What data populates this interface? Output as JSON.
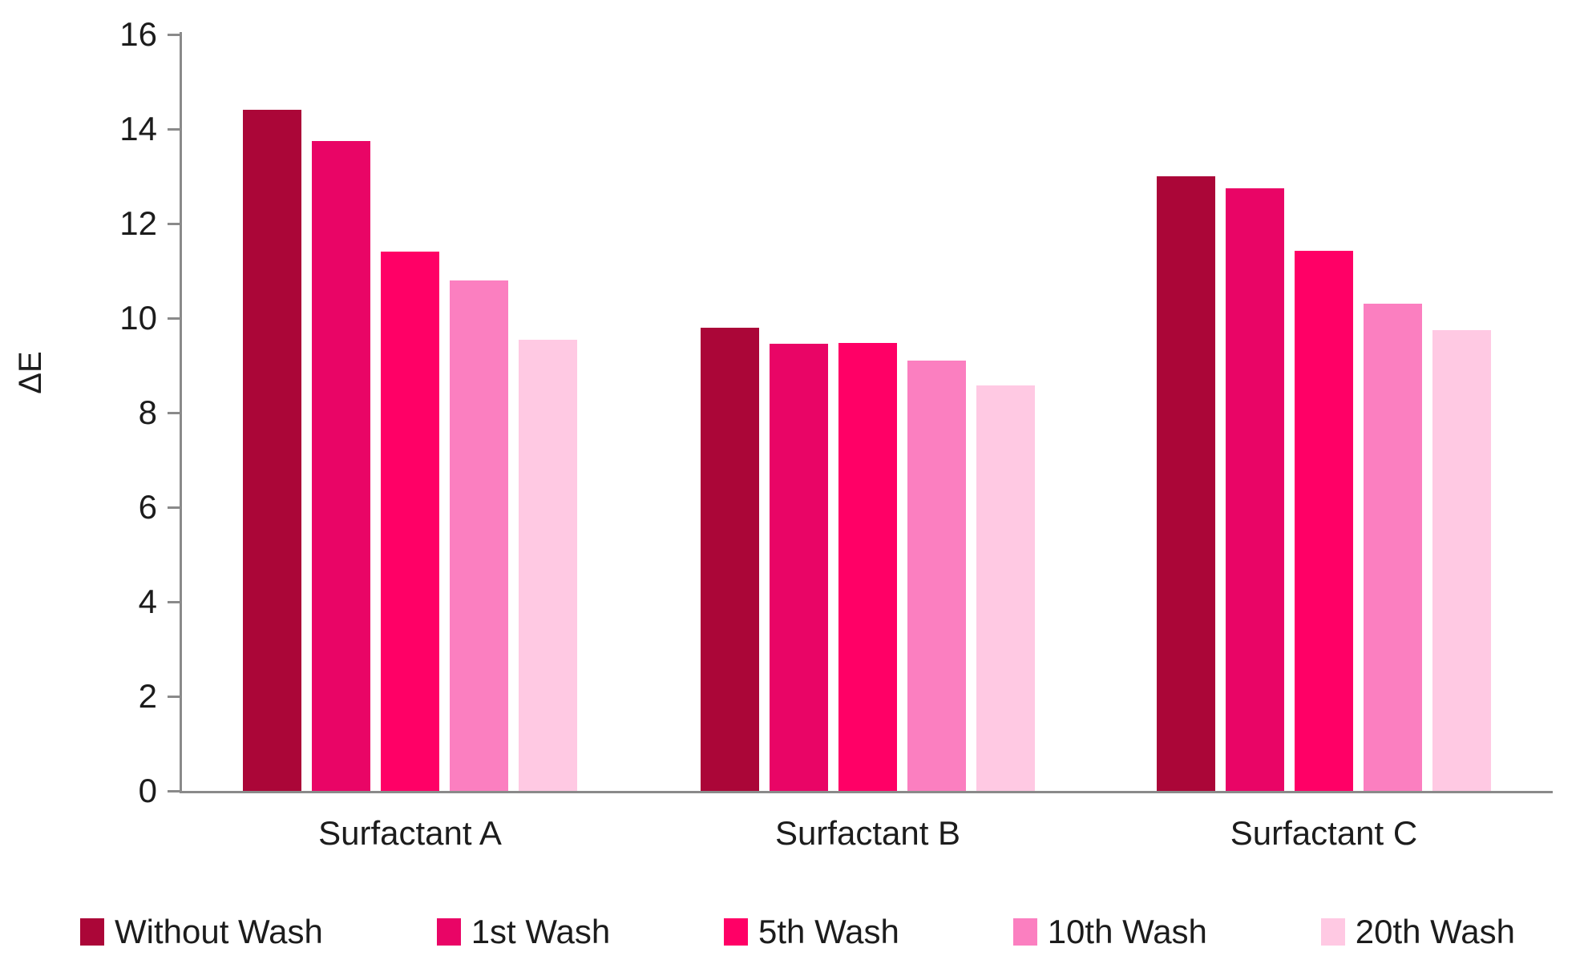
{
  "chart_data": {
    "type": "bar",
    "title": "",
    "xlabel": "",
    "ylabel": "ΔE",
    "ylim": [
      0,
      16
    ],
    "yticks": [
      0,
      2,
      4,
      6,
      8,
      10,
      12,
      14,
      16
    ],
    "grid": false,
    "legend_position": "bottom",
    "axis_color": "#8a8a8a",
    "categories": [
      "Surfactant A",
      "Surfactant B",
      "Surfactant C"
    ],
    "series": [
      {
        "name": "Without Wash",
        "color": "#ab0638",
        "values": [
          14.4,
          9.8,
          13.0
        ]
      },
      {
        "name": "1st Wash",
        "color": "#e90566",
        "values": [
          13.75,
          9.45,
          12.75
        ]
      },
      {
        "name": "5th Wash",
        "color": "#ff0066",
        "values": [
          11.4,
          9.47,
          11.43
        ]
      },
      {
        "name": "10th Wash",
        "color": "#fb7fc0",
        "values": [
          10.8,
          9.1,
          10.3
        ]
      },
      {
        "name": "20th Wash",
        "color": "#ffc9e3",
        "values": [
          9.55,
          8.57,
          9.75
        ]
      }
    ]
  }
}
